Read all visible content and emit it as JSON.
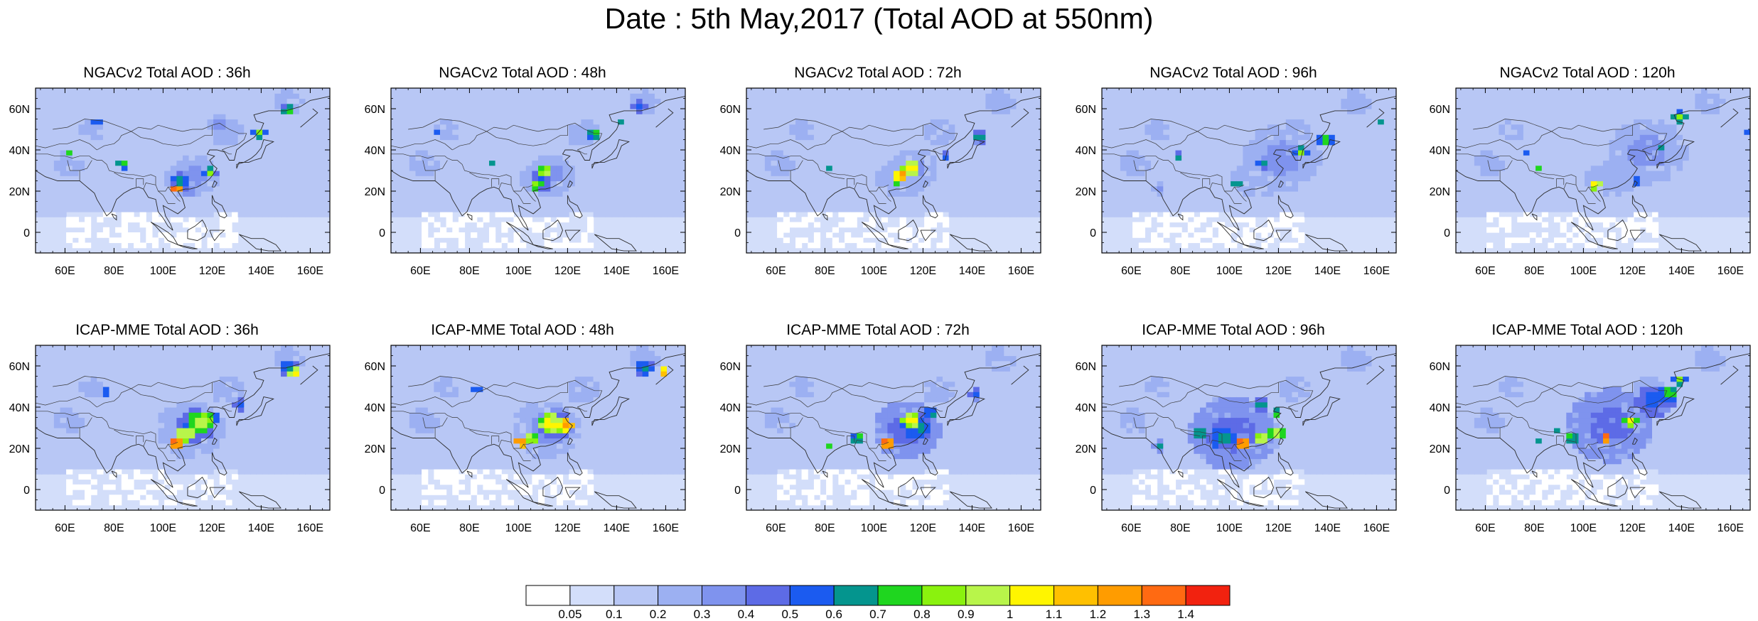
{
  "title": "Date : 5th May,2017 (Total AOD at 550nm)",
  "map": {
    "lat_labels": [
      "60N",
      "40N",
      "20N",
      "0"
    ],
    "lon_labels": [
      "60E",
      "80E",
      "100E",
      "120E",
      "140E",
      "160E"
    ],
    "lon_range": [
      48,
      168
    ],
    "lat_range": [
      -10,
      70
    ]
  },
  "rows": [
    {
      "model": "NGACv2",
      "panels": [
        {
          "title": "NGACv2 Total AOD : 36h",
          "lead": "36h"
        },
        {
          "title": "NGACv2 Total AOD : 48h",
          "lead": "48h"
        },
        {
          "title": "NGACv2 Total AOD : 72h",
          "lead": "72h"
        },
        {
          "title": "NGACv2 Total AOD : 96h",
          "lead": "96h"
        },
        {
          "title": "NGACv2 Total AOD : 120h",
          "lead": "120h"
        }
      ]
    },
    {
      "model": "ICAP-MME",
      "panels": [
        {
          "title": "ICAP-MME Total AOD : 36h",
          "lead": "36h"
        },
        {
          "title": "ICAP-MME Total AOD : 48h",
          "lead": "48h"
        },
        {
          "title": "ICAP-MME Total AOD : 72h",
          "lead": "72h"
        },
        {
          "title": "ICAP-MME Total AOD : 96h",
          "lead": "96h"
        },
        {
          "title": "ICAP-MME Total AOD : 120h",
          "lead": "120h"
        }
      ]
    }
  ],
  "colorbar": {
    "labels": [
      "0.05",
      "0.1",
      "0.2",
      "0.3",
      "0.4",
      "0.5",
      "0.6",
      "0.7",
      "0.8",
      "0.9",
      "1",
      "1.1",
      "1.2",
      "1.3",
      "1.4"
    ],
    "colors": [
      "#ffffff",
      "#d3defa",
      "#b8c7f5",
      "#9cb0f2",
      "#7f93ee",
      "#5d6be6",
      "#1b5bf0",
      "#04958e",
      "#1fd61f",
      "#8af20e",
      "#b8f54a",
      "#fff500",
      "#ffc000",
      "#ff9c00",
      "#ff6a12",
      "#f2220f"
    ]
  }
}
